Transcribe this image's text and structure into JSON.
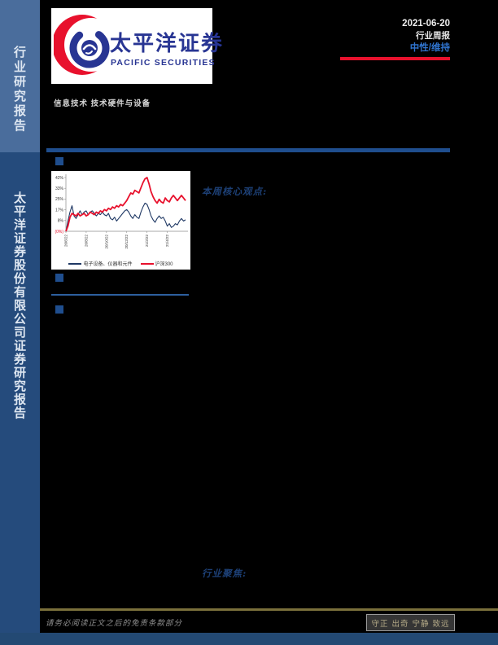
{
  "sidebar": {
    "top_label": "行业研究报告",
    "bottom_label": "太平洋证券股份有限公司证券研究报告",
    "top_bg": "#4a6d9c",
    "bottom_bg": "#254b7c"
  },
  "header": {
    "logo_cn": "太平洋证券",
    "logo_en": "PACIFIC SECURITIES",
    "date": "2021-06-20",
    "report_type": "行业周报",
    "rating": "中性/维持",
    "sector_line": "信息技术 技术硬件与设备"
  },
  "sections": {
    "weekly_view_label": "本周核心观点:",
    "industry_focus_label": "行业聚焦:"
  },
  "chart_data": {
    "type": "line",
    "title": "",
    "xlabel": "",
    "ylabel": "",
    "ylim": [
      0,
      42
    ],
    "grid": false,
    "legend_position": "bottom",
    "y_tick_labels": [
      "42%",
      "33%",
      "25%",
      "17%",
      "8%",
      "(0%)"
    ],
    "x_tick_labels": [
      "20/6/22",
      "20/8/22",
      "20/10/22",
      "20/12/22",
      "21/2/22",
      "21/4/22"
    ],
    "x_tick_indices": [
      0,
      10,
      20,
      30,
      40,
      50
    ],
    "series": [
      {
        "name": "电子设备、仪器和元件",
        "color": "#1f3864",
        "values": [
          0,
          8,
          15,
          20,
          12,
          10,
          13,
          16,
          13,
          15,
          16,
          13,
          15,
          16,
          14,
          12,
          14,
          13,
          15,
          13,
          12,
          14,
          10,
          9,
          11,
          8,
          10,
          12,
          14,
          16,
          17,
          15,
          12,
          10,
          13,
          11,
          10,
          15,
          19,
          22,
          21,
          17,
          12,
          9,
          7,
          10,
          12,
          10,
          11,
          8,
          4,
          6,
          3,
          4,
          6,
          5,
          8,
          10,
          8,
          9
        ]
      },
      {
        "name": "沪深300",
        "color": "#e8112d",
        "values": [
          0,
          4,
          11,
          14,
          13,
          12,
          14,
          12,
          13,
          14,
          12,
          13,
          15,
          14,
          13,
          15,
          14,
          16,
          15,
          17,
          16,
          18,
          17,
          19,
          18,
          20,
          19,
          21,
          20,
          22,
          24,
          27,
          30,
          29,
          32,
          31,
          30,
          34,
          38,
          41,
          42,
          37,
          31,
          27,
          24,
          22,
          25,
          23,
          22,
          26,
          24,
          23,
          26,
          28,
          26,
          24,
          26,
          28,
          26,
          24
        ]
      }
    ]
  },
  "footer": {
    "disclaimer": "请务必阅读正文之后的免责条款部分",
    "motto": "守正 出奇 宁静 致远"
  },
  "colors": {
    "accent_red": "#e8112d",
    "rating_blue": "#2f74cf",
    "divider_blue": "#1f4e8e",
    "heading_blue": "#1d4076",
    "footer_olive": "#7b713c"
  }
}
